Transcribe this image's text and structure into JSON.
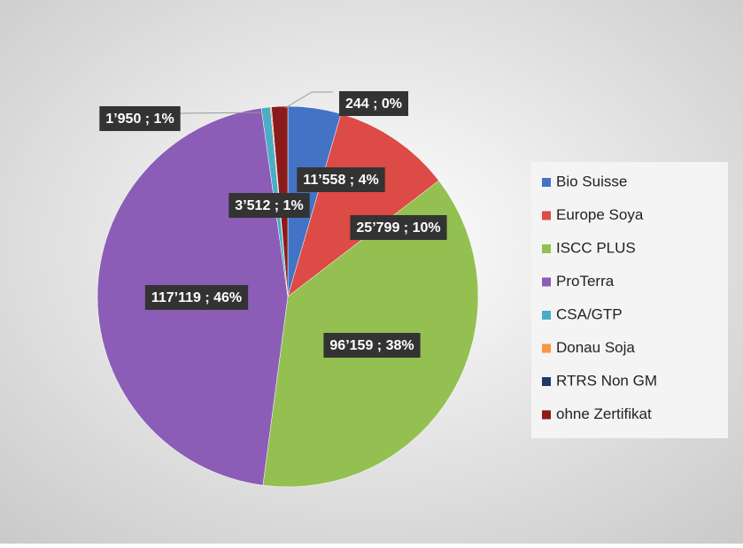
{
  "chart_data": {
    "type": "pie",
    "categories": [
      "Bio Suisse",
      "Europe Soya",
      "ISCC PLUS",
      "ProTerra",
      "CSA/GTP",
      "Donau Soja",
      "RTRS Non GM",
      "ohne Zertifikat"
    ],
    "values": [
      11558,
      25799,
      96159,
      117119,
      1950,
      244,
      0,
      3512
    ],
    "value_labels": [
      "11’558 ; 4%",
      "25’799 ; 10%",
      "96’159 ; 38%",
      "117’119 ; 46%",
      "1’950 ; 1%",
      "244 ; 0%",
      null,
      "3’512 ; 1%"
    ],
    "colors": [
      "#4472c4",
      "#dc4b45",
      "#93c051",
      "#8b5db7",
      "#4bacc6",
      "#f79646",
      "#1f3864",
      "#8b1a1a"
    ],
    "legend": "right"
  }
}
